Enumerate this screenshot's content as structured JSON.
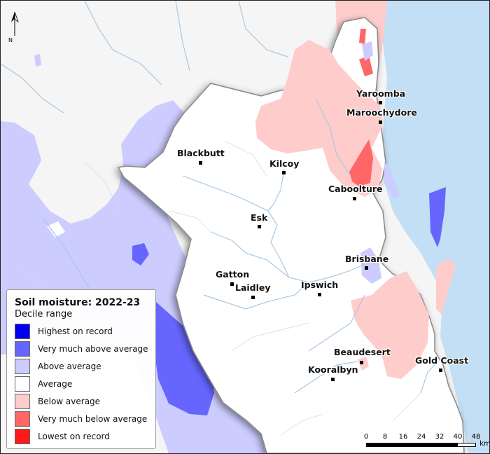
{
  "map": {
    "colors": {
      "highest": "#0000ee",
      "very_much_above": "#6666ff",
      "above": "#ccccff",
      "average": "#ffffff",
      "below": "#ffcccc",
      "very_much_below": "#ff6666",
      "lowest": "#ff1a1a",
      "ocean": "#c3dff5",
      "river": "#a8c8e4"
    },
    "north_arrow": {
      "label": "N"
    },
    "towns": [
      {
        "name": "Yaroomba"
      },
      {
        "name": "Maroochydore"
      },
      {
        "name": "Blackbutt"
      },
      {
        "name": "Kilcoy"
      },
      {
        "name": "Caboolture"
      },
      {
        "name": "Esk"
      },
      {
        "name": "Brisbane"
      },
      {
        "name": "Gatton"
      },
      {
        "name": "Laidley"
      },
      {
        "name": "Ipswich"
      },
      {
        "name": "Beaudesert"
      },
      {
        "name": "Gold Coast"
      },
      {
        "name": "Kooralbyn"
      }
    ],
    "legend": {
      "title": "Soil moisture: 2022-23",
      "subtitle": "Decile range",
      "items": [
        {
          "label": "Highest on record",
          "color": "#0000ee"
        },
        {
          "label": "Very much above average",
          "color": "#6666ff"
        },
        {
          "label": "Above average",
          "color": "#ccccff"
        },
        {
          "label": "Average",
          "color": "#ffffff"
        },
        {
          "label": "Below average",
          "color": "#ffcccc"
        },
        {
          "label": "Very much below average",
          "color": "#ff6666"
        },
        {
          "label": "Lowest on record",
          "color": "#ff1a1a"
        }
      ]
    },
    "scale": {
      "ticks": [
        "0",
        "8",
        "16",
        "24",
        "32",
        "40",
        "48"
      ],
      "unit": "km"
    }
  }
}
